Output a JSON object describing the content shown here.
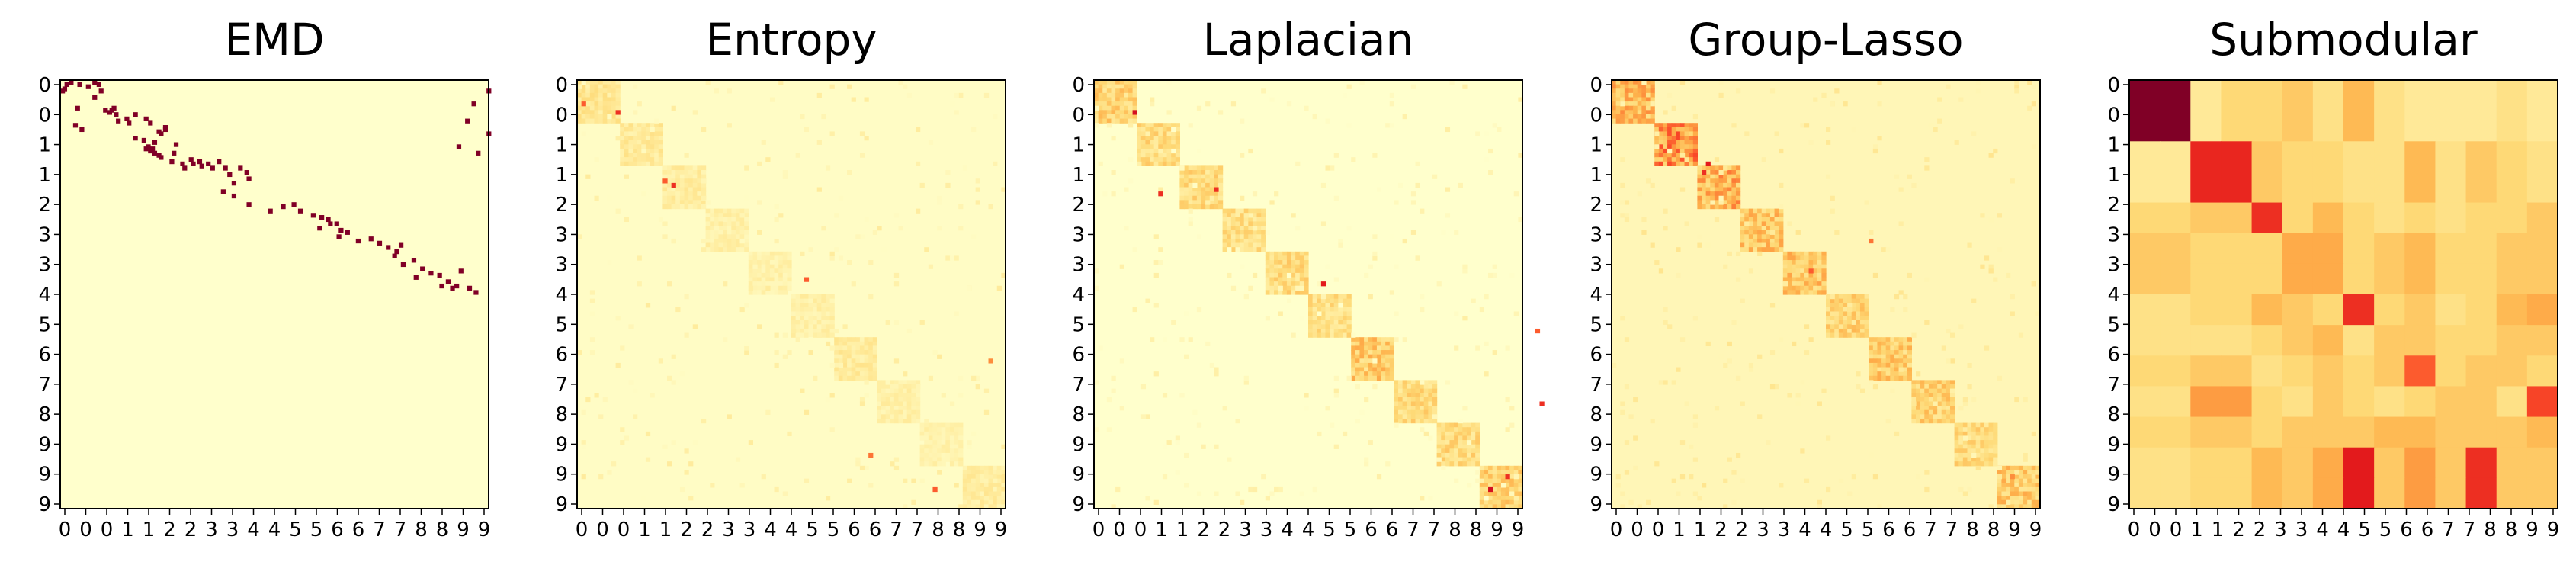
{
  "figure": {
    "background": "#ffffff",
    "colormap": "YlOrRd",
    "colormap_stops": [
      "#ffffcc",
      "#ffeda0",
      "#fed976",
      "#feb24c",
      "#fd8d3c",
      "#fc4e2a",
      "#e31a1c",
      "#bd0026",
      "#800026"
    ]
  },
  "chart_data": [
    {
      "type": "heatmap",
      "title": "EMD",
      "xticklabels": [
        "0",
        "0",
        "0",
        "1",
        "1",
        "2",
        "2",
        "3",
        "3",
        "4",
        "4",
        "5",
        "5",
        "6",
        "6",
        "7",
        "7",
        "8",
        "8",
        "9",
        "9"
      ],
      "yticklabels": [
        "0",
        "0",
        "1",
        "1",
        "2",
        "3",
        "3",
        "4",
        "5",
        "6",
        "7",
        "8",
        "9",
        "9",
        "9"
      ],
      "matrix_size": 100,
      "background_value": 0.0,
      "cells": [
        [
          0,
          4,
          1
        ],
        [
          1,
          2,
          1
        ],
        [
          1,
          8,
          1
        ],
        [
          3,
          1,
          1
        ],
        [
          4,
          0,
          1
        ],
        [
          2,
          12,
          1
        ],
        [
          0,
          15,
          1
        ],
        [
          1,
          17,
          1
        ],
        [
          4,
          18,
          1
        ],
        [
          7,
          15,
          1
        ],
        [
          12,
          7,
          1
        ],
        [
          13,
          23,
          1
        ],
        [
          13,
          20,
          1
        ],
        [
          14,
          22,
          1
        ],
        [
          15,
          25,
          1
        ],
        [
          18,
          26,
          1
        ],
        [
          20,
          6,
          1
        ],
        [
          22,
          9,
          1
        ],
        [
          12,
          24,
          1
        ],
        [
          15,
          34,
          1
        ],
        [
          17,
          30,
          1
        ],
        [
          19,
          31,
          1
        ],
        [
          17,
          39,
          1
        ],
        [
          19,
          41,
          1
        ],
        [
          21,
          48,
          1
        ],
        [
          22,
          48,
          1
        ],
        [
          23,
          45,
          1
        ],
        [
          24,
          46,
          1
        ],
        [
          26,
          34,
          1
        ],
        [
          28,
          43,
          1
        ],
        [
          30,
          40,
          1
        ],
        [
          27,
          38,
          1
        ],
        [
          31,
          39,
          1
        ],
        [
          31,
          42,
          1
        ],
        [
          32,
          41,
          1
        ],
        [
          33,
          43,
          1
        ],
        [
          34,
          45,
          1
        ],
        [
          35,
          46,
          1
        ],
        [
          29,
          53,
          1
        ],
        [
          33,
          52,
          1
        ],
        [
          37,
          51,
          1
        ],
        [
          38,
          56,
          1
        ],
        [
          40,
          57,
          1
        ],
        [
          36,
          60,
          1
        ],
        [
          38,
          61,
          1
        ],
        [
          37,
          64,
          1
        ],
        [
          39,
          65,
          1
        ],
        [
          38,
          68,
          1
        ],
        [
          40,
          70,
          1
        ],
        [
          37,
          73,
          1
        ],
        [
          40,
          76,
          1
        ],
        [
          43,
          78,
          1
        ],
        [
          47,
          80,
          1
        ],
        [
          40,
          83,
          1
        ],
        [
          42,
          86,
          1
        ],
        [
          45,
          87,
          1
        ],
        [
          51,
          75,
          1
        ],
        [
          53,
          80,
          1
        ],
        [
          57,
          87,
          1
        ],
        [
          60,
          97,
          1
        ],
        [
          58,
          103,
          1
        ],
        [
          57,
          108,
          1
        ],
        [
          60,
          111,
          1
        ],
        [
          62,
          117,
          1
        ],
        [
          63,
          121,
          1
        ],
        [
          64,
          124,
          1
        ],
        [
          66,
          125,
          1
        ],
        [
          68,
          120,
          1
        ],
        [
          66,
          128,
          1
        ],
        [
          69,
          130,
          1
        ],
        [
          70,
          133,
          1
        ],
        [
          72,
          129,
          1
        ],
        [
          74,
          138,
          1
        ],
        [
          73,
          144,
          1
        ],
        [
          75,
          148,
          1
        ],
        [
          77,
          152,
          1
        ],
        [
          79,
          156,
          1
        ],
        [
          76,
          158,
          1
        ],
        [
          81,
          155,
          1
        ],
        [
          83,
          164,
          1
        ],
        [
          85,
          159,
          1
        ],
        [
          87,
          168,
          1
        ],
        [
          89,
          172,
          1
        ],
        [
          91,
          165,
          1
        ],
        [
          90,
          176,
          1
        ],
        [
          93,
          180,
          1
        ],
        [
          95,
          177,
          1
        ],
        [
          95,
          184,
          1
        ],
        [
          96,
          190,
          1
        ],
        [
          98,
          193,
          1
        ],
        [
          88,
          186,
          1
        ],
        [
          96,
          182,
          1
        ],
        [
          18,
          189,
          1
        ],
        [
          4,
          199,
          1
        ],
        [
          10,
          192,
          1
        ],
        [
          24,
          199,
          1
        ],
        [
          33,
          194,
          1
        ],
        [
          30,
          185,
          1
        ]
      ]
    },
    {
      "type": "heatmap",
      "title": "Entropy",
      "xticklabels": [
        "0",
        "0",
        "0",
        "1",
        "1",
        "2",
        "2",
        "3",
        "3",
        "4",
        "4",
        "5",
        "5",
        "6",
        "6",
        "7",
        "7",
        "8",
        "8",
        "9",
        "9"
      ],
      "yticklabels": [
        "0",
        "0",
        "1",
        "1",
        "2",
        "3",
        "3",
        "4",
        "5",
        "6",
        "7",
        "8",
        "9",
        "9",
        "9"
      ],
      "matrix_size": 100,
      "background_value": 0.02,
      "block_values": [
        0.16,
        0.14,
        0.12,
        0.1,
        0.09,
        0.1,
        0.13,
        0.1,
        0.09,
        0.12
      ],
      "peak_cells": [
        [
          5,
          1,
          0.6
        ],
        [
          7,
          9,
          0.7
        ],
        [
          23,
          20,
          0.6
        ],
        [
          24,
          22,
          0.7
        ],
        [
          46,
          53,
          0.6
        ],
        [
          65,
          96,
          0.5
        ],
        [
          87,
          68,
          0.55
        ],
        [
          95,
          83,
          0.6
        ]
      ]
    },
    {
      "type": "heatmap",
      "title": "Laplacian",
      "xticklabels": [
        "0",
        "0",
        "0",
        "1",
        "1",
        "2",
        "2",
        "3",
        "3",
        "4",
        "4",
        "5",
        "5",
        "6",
        "6",
        "7",
        "7",
        "8",
        "8",
        "9",
        "9"
      ],
      "yticklabels": [
        "0",
        "0",
        "1",
        "1",
        "2",
        "3",
        "3",
        "4",
        "5",
        "6",
        "7",
        "8",
        "9",
        "9",
        "9"
      ],
      "matrix_size": 100,
      "background_value": 0.0,
      "block_values": [
        0.25,
        0.22,
        0.22,
        0.2,
        0.22,
        0.2,
        0.28,
        0.22,
        0.22,
        0.25
      ],
      "peak_cells": [
        [
          7,
          9,
          0.8
        ],
        [
          26,
          15,
          0.7
        ],
        [
          25,
          28,
          0.7
        ],
        [
          47,
          53,
          0.75
        ],
        [
          58,
          103,
          0.6
        ],
        [
          75,
          104,
          0.7
        ],
        [
          95,
          92,
          0.8
        ],
        [
          92,
          96,
          0.7
        ]
      ]
    },
    {
      "type": "heatmap",
      "title": "Group-Lasso",
      "xticklabels": [
        "0",
        "0",
        "0",
        "1",
        "1",
        "2",
        "2",
        "3",
        "3",
        "4",
        "4",
        "5",
        "5",
        "6",
        "6",
        "7",
        "7",
        "8",
        "8",
        "9",
        "9"
      ],
      "yticklabels": [
        "0",
        "0",
        "1",
        "1",
        "2",
        "3",
        "3",
        "4",
        "5",
        "6",
        "7",
        "8",
        "9",
        "9",
        "9"
      ],
      "matrix_size": 100,
      "background_value": 0.06,
      "block_values": [
        0.35,
        0.45,
        0.38,
        0.3,
        0.3,
        0.25,
        0.28,
        0.25,
        0.22,
        0.28
      ],
      "peak_cells": [
        [
          19,
          22,
          0.75
        ],
        [
          21,
          21,
          0.7
        ],
        [
          44,
          46,
          0.6
        ],
        [
          37,
          60,
          0.55
        ],
        [
          92,
          93,
          0.5
        ]
      ]
    },
    {
      "type": "heatmap",
      "title": "Submodular",
      "xticklabels": [
        "0",
        "0",
        "0",
        "1",
        "1",
        "2",
        "2",
        "3",
        "3",
        "4",
        "4",
        "5",
        "5",
        "6",
        "6",
        "7",
        "7",
        "8",
        "8",
        "9",
        "9"
      ],
      "yticklabels": [
        "0",
        "0",
        "1",
        "1",
        "2",
        "3",
        "3",
        "4",
        "5",
        "6",
        "7",
        "8",
        "9",
        "9",
        "9"
      ],
      "matrix_size": 14,
      "values": [
        [
          1.0,
          1.0,
          0.15,
          0.25,
          0.25,
          0.3,
          0.2,
          0.35,
          0.2,
          0.15,
          0.15,
          0.15,
          0.2,
          0.15
        ],
        [
          1.0,
          1.0,
          0.15,
          0.25,
          0.25,
          0.3,
          0.2,
          0.35,
          0.2,
          0.15,
          0.15,
          0.15,
          0.2,
          0.15
        ],
        [
          0.15,
          0.15,
          0.72,
          0.72,
          0.3,
          0.25,
          0.25,
          0.2,
          0.2,
          0.35,
          0.2,
          0.3,
          0.25,
          0.2
        ],
        [
          0.15,
          0.15,
          0.72,
          0.72,
          0.3,
          0.25,
          0.25,
          0.2,
          0.2,
          0.35,
          0.2,
          0.3,
          0.25,
          0.2
        ],
        [
          0.25,
          0.25,
          0.3,
          0.3,
          0.7,
          0.25,
          0.35,
          0.25,
          0.2,
          0.25,
          0.2,
          0.25,
          0.25,
          0.3
        ],
        [
          0.3,
          0.3,
          0.25,
          0.25,
          0.25,
          0.4,
          0.4,
          0.25,
          0.3,
          0.35,
          0.25,
          0.25,
          0.3,
          0.3
        ],
        [
          0.3,
          0.3,
          0.25,
          0.25,
          0.25,
          0.4,
          0.4,
          0.25,
          0.3,
          0.35,
          0.25,
          0.25,
          0.3,
          0.3
        ],
        [
          0.2,
          0.2,
          0.25,
          0.25,
          0.35,
          0.3,
          0.25,
          0.7,
          0.25,
          0.3,
          0.2,
          0.25,
          0.35,
          0.4
        ],
        [
          0.2,
          0.2,
          0.2,
          0.2,
          0.25,
          0.3,
          0.35,
          0.2,
          0.3,
          0.3,
          0.25,
          0.25,
          0.3,
          0.3
        ],
        [
          0.25,
          0.25,
          0.3,
          0.3,
          0.2,
          0.25,
          0.3,
          0.25,
          0.3,
          0.6,
          0.25,
          0.3,
          0.3,
          0.25
        ],
        [
          0.2,
          0.2,
          0.45,
          0.45,
          0.25,
          0.2,
          0.3,
          0.25,
          0.2,
          0.25,
          0.3,
          0.3,
          0.2,
          0.65
        ],
        [
          0.25,
          0.25,
          0.3,
          0.3,
          0.25,
          0.3,
          0.3,
          0.3,
          0.35,
          0.35,
          0.3,
          0.3,
          0.3,
          0.35
        ],
        [
          0.2,
          0.2,
          0.25,
          0.25,
          0.35,
          0.3,
          0.4,
          0.75,
          0.3,
          0.45,
          0.3,
          0.7,
          0.3,
          0.3
        ],
        [
          0.2,
          0.2,
          0.25,
          0.25,
          0.35,
          0.3,
          0.4,
          0.75,
          0.3,
          0.45,
          0.3,
          0.7,
          0.3,
          0.3
        ]
      ]
    }
  ]
}
